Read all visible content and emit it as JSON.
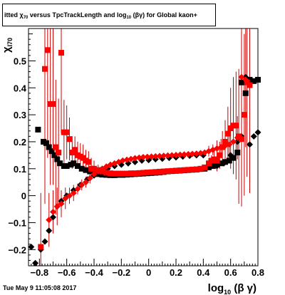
{
  "title": {
    "prefix": "itted",
    "symbol": "χ",
    "symbol_sub": "70",
    "middle": "versus TpcTrackLength and log",
    "log_sub": "10",
    "suffix": "(βγ) for Global kaon+"
  },
  "timestamp": "Tue May  9 11:05:08 2017",
  "chart_data": {
    "type": "scatter",
    "title": "itted χ70 versus TpcTrackLength and log10(βγ) for Global kaon+",
    "xlabel": {
      "main": "log",
      "sub": "10",
      "tail": " (β γ)"
    },
    "ylabel": {
      "main": "χ",
      "sub": "I70"
    },
    "xlim": [
      -0.88,
      0.8
    ],
    "ylim": [
      -0.26,
      0.62
    ],
    "xticks": [
      -0.8,
      -0.6,
      -0.4,
      -0.2,
      0,
      0.2,
      0.4,
      0.6,
      0.8
    ],
    "xtick_labels": [
      "−0.8",
      "−0.6",
      "−0.4",
      "−0.2",
      "0",
      "0.2",
      "0.4",
      "0.6",
      "0.8"
    ],
    "yticks": [
      -0.2,
      -0.1,
      0,
      0.1,
      0.2,
      0.3,
      0.4,
      0.5
    ],
    "ytick_labels": [
      "−0.2",
      "−0.1",
      "0",
      "0.1",
      "0.2",
      "0.3",
      "0.4",
      "0.5"
    ],
    "grid": false,
    "legend": "none",
    "colors": {
      "red": "#ff0000",
      "black": "#000000",
      "errbar": "#cc0000"
    },
    "series": [
      {
        "marker": "square",
        "color": "#000000",
        "points": [
          [
            -0.81,
            0.245
          ],
          [
            -0.77,
            0.2
          ],
          [
            -0.75,
            0.195
          ],
          [
            -0.73,
            0.18
          ],
          [
            -0.71,
            0.165
          ],
          [
            -0.69,
            0.15
          ],
          [
            -0.67,
            0.135
          ],
          [
            -0.65,
            0.12
          ],
          [
            -0.62,
            0.11
          ],
          [
            -0.6,
            0.11
          ],
          [
            -0.57,
            0.115
          ],
          [
            -0.55,
            0.12
          ],
          [
            -0.52,
            0.11
          ],
          [
            -0.49,
            0.1
          ],
          [
            -0.46,
            0.095
          ],
          [
            -0.43,
            0.09
          ],
          [
            -0.4,
            0.085
          ],
          [
            -0.37,
            0.08
          ],
          [
            -0.34,
            0.078
          ],
          [
            -0.31,
            0.077
          ],
          [
            -0.28,
            0.076
          ],
          [
            -0.25,
            0.076
          ],
          [
            -0.22,
            0.077
          ],
          [
            -0.19,
            0.077
          ],
          [
            -0.16,
            0.078
          ],
          [
            -0.13,
            0.079
          ],
          [
            -0.1,
            0.08
          ],
          [
            -0.07,
            0.081
          ],
          [
            -0.04,
            0.082
          ],
          [
            -0.01,
            0.083
          ],
          [
            0.02,
            0.084
          ],
          [
            0.05,
            0.085
          ],
          [
            0.08,
            0.086
          ],
          [
            0.11,
            0.088
          ],
          [
            0.14,
            0.09
          ],
          [
            0.17,
            0.091
          ],
          [
            0.2,
            0.092
          ],
          [
            0.23,
            0.093
          ],
          [
            0.26,
            0.094
          ],
          [
            0.29,
            0.095
          ],
          [
            0.32,
            0.096
          ],
          [
            0.35,
            0.097
          ],
          [
            0.38,
            0.099
          ],
          [
            0.41,
            0.1
          ],
          [
            0.44,
            0.105
          ],
          [
            0.47,
            0.11
          ],
          [
            0.5,
            0.115
          ],
          [
            0.53,
            0.12
          ],
          [
            0.56,
            0.125
          ],
          [
            0.59,
            0.13
          ],
          [
            0.62,
            0.14
          ],
          [
            0.65,
            0.16
          ],
          [
            0.68,
            0.42
          ],
          [
            0.71,
            0.38
          ],
          [
            0.74,
            0.43
          ],
          [
            0.77,
            0.425
          ],
          [
            0.8,
            0.43
          ]
        ]
      },
      {
        "marker": "diamond",
        "color": "#000000",
        "points": [
          [
            -0.86,
            -0.19
          ],
          [
            -0.83,
            -0.25
          ],
          [
            -0.79,
            -0.2
          ],
          [
            -0.76,
            -0.17
          ],
          [
            -0.73,
            -0.13
          ],
          [
            -0.7,
            -0.08
          ],
          [
            -0.67,
            -0.04
          ],
          [
            -0.64,
            -0.02
          ],
          [
            -0.6,
            0.0
          ],
          [
            -0.55,
            0.02
          ],
          [
            -0.5,
            0.04
          ],
          [
            -0.45,
            0.06
          ],
          [
            -0.4,
            0.075
          ],
          [
            -0.35,
            0.09
          ],
          [
            -0.3,
            0.1
          ],
          [
            -0.25,
            0.11
          ],
          [
            -0.2,
            0.115
          ],
          [
            -0.15,
            0.12
          ],
          [
            -0.1,
            0.125
          ],
          [
            -0.05,
            0.13
          ],
          [
            0.0,
            0.132
          ],
          [
            0.05,
            0.135
          ],
          [
            0.1,
            0.137
          ],
          [
            0.15,
            0.14
          ],
          [
            0.2,
            0.142
          ],
          [
            0.25,
            0.145
          ],
          [
            0.3,
            0.148
          ],
          [
            0.35,
            0.15
          ],
          [
            0.4,
            0.15
          ],
          [
            0.45,
            0.12
          ],
          [
            0.5,
            0.11
          ],
          [
            0.55,
            0.12
          ],
          [
            0.6,
            0.15
          ],
          [
            0.65,
            0.2
          ],
          [
            0.68,
            0.22
          ],
          [
            0.71,
            0.44
          ],
          [
            0.74,
            0.19
          ],
          [
            0.77,
            0.22
          ],
          [
            0.8,
            0.235
          ]
        ]
      },
      {
        "marker": "square",
        "color": "#ff0000",
        "errors": true,
        "points": [
          [
            -0.79,
            -0.19,
            0.2
          ],
          [
            -0.76,
            0.47,
            0.5
          ],
          [
            -0.74,
            0.54,
            0.4
          ],
          [
            -0.72,
            0.34,
            0.3
          ],
          [
            -0.7,
            0.34,
            0.3
          ],
          [
            -0.68,
            0.18,
            0.25
          ],
          [
            -0.66,
            0.16,
            0.2
          ],
          [
            -0.64,
            0.53,
            0.3
          ],
          [
            -0.62,
            0.235,
            0.12
          ],
          [
            -0.6,
            0.235,
            0.1
          ],
          [
            -0.58,
            0.21,
            0.08
          ],
          [
            -0.56,
            0.16,
            0.06
          ],
          [
            -0.54,
            0.17,
            0.05
          ],
          [
            -0.52,
            0.15,
            0.05
          ],
          [
            -0.5,
            0.145,
            0.05
          ],
          [
            -0.48,
            0.14,
            0.05
          ],
          [
            -0.46,
            0.13,
            0.04
          ],
          [
            -0.44,
            0.125,
            0.04
          ],
          [
            -0.42,
            0.1,
            0.04
          ],
          [
            -0.4,
            0.1,
            0.03
          ],
          [
            -0.37,
            0.095,
            0.02
          ],
          [
            -0.34,
            0.09,
            0.01
          ],
          [
            -0.31,
            0.085,
            0.01
          ],
          [
            -0.28,
            0.083,
            0.01
          ],
          [
            -0.25,
            0.082,
            0.01
          ],
          [
            -0.22,
            0.082,
            0.01
          ],
          [
            -0.19,
            0.082,
            0.01
          ],
          [
            -0.16,
            0.082,
            0.01
          ],
          [
            -0.13,
            0.083,
            0.01
          ],
          [
            -0.1,
            0.083,
            0.01
          ],
          [
            -0.07,
            0.084,
            0.01
          ],
          [
            -0.04,
            0.085,
            0.01
          ],
          [
            -0.01,
            0.086,
            0.01
          ],
          [
            0.02,
            0.087,
            0.01
          ],
          [
            0.05,
            0.088,
            0.01
          ],
          [
            0.08,
            0.089,
            0.01
          ],
          [
            0.11,
            0.09,
            0.01
          ],
          [
            0.14,
            0.091,
            0.01
          ],
          [
            0.17,
            0.092,
            0.01
          ],
          [
            0.2,
            0.093,
            0.01
          ],
          [
            0.23,
            0.094,
            0.01
          ],
          [
            0.26,
            0.095,
            0.01
          ],
          [
            0.29,
            0.096,
            0.01
          ],
          [
            0.32,
            0.097,
            0.01
          ],
          [
            0.35,
            0.098,
            0.01
          ],
          [
            0.38,
            0.1,
            0.01
          ],
          [
            0.41,
            0.105,
            0.01
          ],
          [
            0.44,
            0.12,
            0.02
          ],
          [
            0.46,
            0.13,
            0.02
          ],
          [
            0.48,
            0.135,
            0.03
          ],
          [
            0.5,
            0.13,
            0.04
          ],
          [
            0.52,
            0.15,
            0.05
          ],
          [
            0.54,
            0.18,
            0.06
          ],
          [
            0.56,
            0.2,
            0.08
          ],
          [
            0.58,
            0.23,
            0.1
          ],
          [
            0.6,
            0.25,
            0.15
          ],
          [
            0.62,
            0.26,
            0.18
          ],
          [
            0.64,
            0.26,
            0.2
          ],
          [
            0.66,
            0.22,
            0.25
          ],
          [
            0.68,
            0.21,
            0.25
          ],
          [
            0.7,
            0.3,
            0.3
          ],
          [
            0.72,
            0.42,
            0.35
          ],
          [
            0.74,
            0.41,
            0.4
          ]
        ]
      },
      {
        "marker": "diamond",
        "color": "#ff0000",
        "errors": true,
        "points": [
          [
            -0.73,
            -0.09,
            0.1
          ],
          [
            -0.7,
            -0.06,
            0.08
          ],
          [
            -0.67,
            -0.04,
            0.07
          ],
          [
            -0.64,
            -0.03,
            0.05
          ],
          [
            -0.61,
            -0.01,
            0.04
          ],
          [
            -0.58,
            0.0,
            0.03
          ],
          [
            -0.55,
            0.01,
            0.03
          ],
          [
            -0.52,
            0.025,
            0.02
          ],
          [
            -0.49,
            0.04,
            0.02
          ],
          [
            -0.46,
            0.05,
            0.02
          ],
          [
            -0.43,
            0.065,
            0.02
          ],
          [
            -0.4,
            0.08,
            0.01
          ],
          [
            -0.37,
            0.09,
            0.01
          ],
          [
            -0.34,
            0.1,
            0.01
          ],
          [
            -0.31,
            0.108,
            0.01
          ],
          [
            -0.28,
            0.115,
            0.01
          ],
          [
            -0.25,
            0.12,
            0.01
          ],
          [
            -0.22,
            0.125,
            0.01
          ],
          [
            -0.19,
            0.13,
            0.01
          ],
          [
            -0.16,
            0.133,
            0.01
          ],
          [
            -0.13,
            0.136,
            0.01
          ],
          [
            -0.1,
            0.139,
            0.01
          ],
          [
            -0.07,
            0.141,
            0.01
          ],
          [
            -0.04,
            0.143,
            0.01
          ],
          [
            -0.01,
            0.144,
            0.01
          ],
          [
            0.02,
            0.145,
            0.01
          ],
          [
            0.05,
            0.146,
            0.01
          ],
          [
            0.08,
            0.147,
            0.01
          ],
          [
            0.11,
            0.148,
            0.01
          ],
          [
            0.14,
            0.149,
            0.01
          ],
          [
            0.17,
            0.15,
            0.01
          ],
          [
            0.2,
            0.151,
            0.01
          ],
          [
            0.23,
            0.152,
            0.01
          ],
          [
            0.26,
            0.153,
            0.01
          ],
          [
            0.29,
            0.154,
            0.01
          ],
          [
            0.32,
            0.155,
            0.01
          ],
          [
            0.35,
            0.156,
            0.01
          ],
          [
            0.38,
            0.158,
            0.01
          ],
          [
            0.41,
            0.16,
            0.01
          ],
          [
            0.44,
            0.165,
            0.02
          ],
          [
            0.47,
            0.17,
            0.02
          ],
          [
            0.5,
            0.175,
            0.03
          ],
          [
            0.53,
            0.18,
            0.03
          ],
          [
            0.56,
            0.185,
            0.04
          ],
          [
            0.59,
            0.19,
            0.05
          ],
          [
            0.62,
            0.2,
            0.06
          ],
          [
            0.65,
            0.215,
            0.08
          ],
          [
            0.68,
            0.44,
            0.2
          ],
          [
            0.71,
            0.43,
            0.25
          ]
        ]
      }
    ]
  }
}
